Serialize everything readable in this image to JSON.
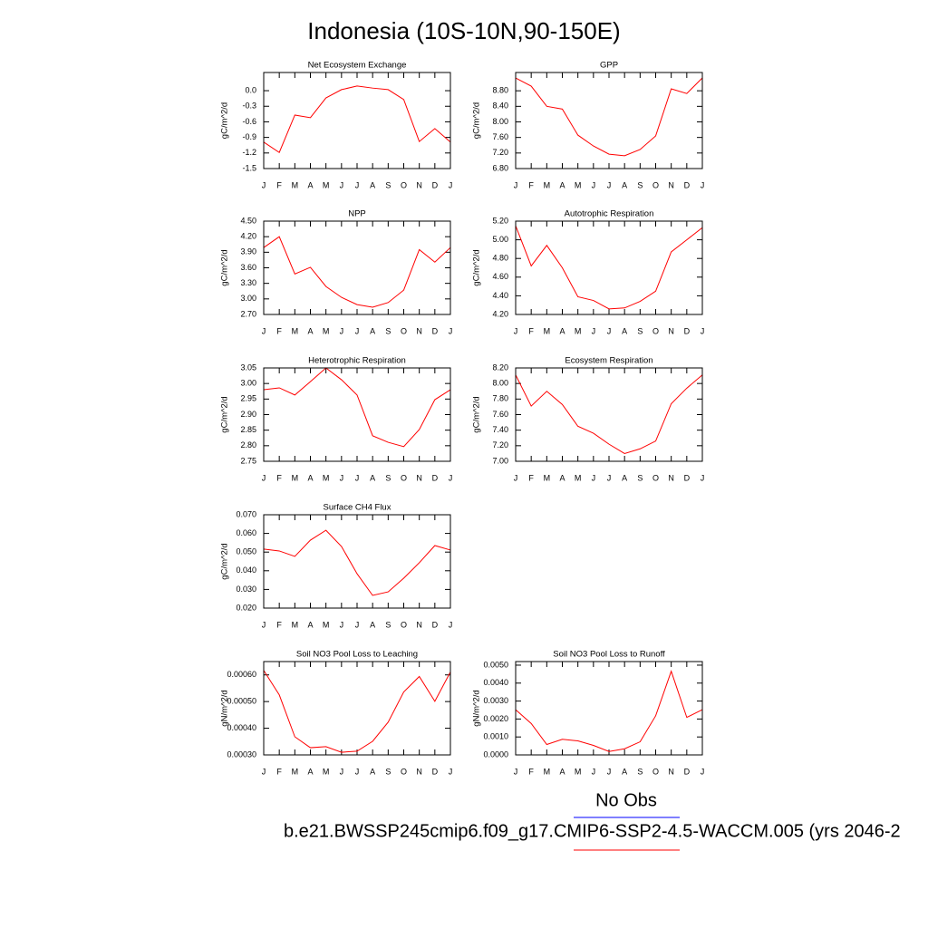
{
  "title": "Indonesia (10S-10N,90-150E)",
  "legend": {
    "obs_label": "No Obs",
    "obs_color": "#0000ff",
    "case_label": "b.e21.BWSSP245cmip6.f09_g17.CMIP6-SSP2-4.5-WACCM.005 (yrs 2046-2",
    "case_color": "#ff0000"
  },
  "chart_data": [
    {
      "type": "line",
      "title": "Net Ecosystem Exchange",
      "ylabel": "gC/m^2/d",
      "categories": [
        "J",
        "F",
        "M",
        "A",
        "M",
        "J",
        "J",
        "A",
        "S",
        "O",
        "N",
        "D",
        "J"
      ],
      "series": [
        {
          "color": "#ff0000",
          "values": [
            -0.99,
            -1.19,
            -0.47,
            -0.52,
            -0.14,
            0.02,
            0.09,
            0.05,
            0.02,
            -0.17,
            -0.98,
            -0.73,
            -0.99
          ]
        }
      ],
      "ylim": [
        -1.5,
        0.35
      ],
      "yticks": [
        {
          "value": 0,
          "label": "0.0"
        },
        -0.3,
        -0.6,
        -0.9,
        -1.2,
        -1.5
      ]
    },
    {
      "type": "line",
      "title": "GPP",
      "ylabel": "gC/m^2/d",
      "categories": [
        "J",
        "F",
        "M",
        "A",
        "M",
        "J",
        "J",
        "A",
        "S",
        "O",
        "N",
        "D",
        "J"
      ],
      "series": [
        {
          "color": "#ff0000",
          "values": [
            9.13,
            8.92,
            8.4,
            8.33,
            7.66,
            7.38,
            7.17,
            7.13,
            7.29,
            7.64,
            8.85,
            8.73,
            9.13
          ]
        }
      ],
      "ylim": [
        6.8,
        9.27
      ],
      "yticks": [
        {
          "value": 8.8,
          "label": "8.80"
        },
        {
          "value": 8.4,
          "label": "8.40"
        },
        {
          "value": 8.0,
          "label": "8.00"
        },
        {
          "value": 7.6,
          "label": "7.60"
        },
        {
          "value": 7.2,
          "label": "7.20"
        },
        {
          "value": 6.8,
          "label": "6.80"
        }
      ]
    },
    {
      "type": "line",
      "title": "NPP",
      "ylabel": "gC/m^2/d",
      "categories": [
        "J",
        "F",
        "M",
        "A",
        "M",
        "J",
        "J",
        "A",
        "S",
        "O",
        "N",
        "D",
        "J"
      ],
      "series": [
        {
          "color": "#ff0000",
          "values": [
            3.99,
            4.2,
            3.48,
            3.61,
            3.24,
            3.03,
            2.89,
            2.84,
            2.93,
            3.17,
            3.95,
            3.71,
            3.99
          ]
        }
      ],
      "ylim": [
        2.7,
        4.5
      ],
      "yticks": [
        {
          "value": 4.5,
          "label": "4.50"
        },
        {
          "value": 4.2,
          "label": "4.20"
        },
        {
          "value": 3.9,
          "label": "3.90"
        },
        {
          "value": 3.6,
          "label": "3.60"
        },
        {
          "value": 3.3,
          "label": "3.30"
        },
        {
          "value": 3.0,
          "label": "3.00"
        },
        {
          "value": 2.7,
          "label": "2.70"
        }
      ]
    },
    {
      "type": "line",
      "title": "Autotrophic Respiration",
      "ylabel": "gC/m^2/d",
      "categories": [
        "J",
        "F",
        "M",
        "A",
        "M",
        "J",
        "J",
        "A",
        "S",
        "O",
        "N",
        "D",
        "J"
      ],
      "series": [
        {
          "color": "#ff0000",
          "values": [
            5.15,
            4.72,
            4.94,
            4.7,
            4.39,
            4.35,
            4.26,
            4.27,
            4.34,
            4.45,
            4.87,
            5.0,
            5.13
          ]
        }
      ],
      "ylim": [
        4.2,
        5.2
      ],
      "yticks": [
        {
          "value": 5.2,
          "label": "5.20"
        },
        {
          "value": 5.0,
          "label": "5.00"
        },
        {
          "value": 4.8,
          "label": "4.80"
        },
        {
          "value": 4.6,
          "label": "4.60"
        },
        {
          "value": 4.4,
          "label": "4.40"
        },
        {
          "value": 4.2,
          "label": "4.20"
        }
      ]
    },
    {
      "type": "line",
      "title": "Heterotrophic Respiration",
      "ylabel": "gC/m^2/d",
      "categories": [
        "J",
        "F",
        "M",
        "A",
        "M",
        "J",
        "J",
        "A",
        "S",
        "O",
        "N",
        "D",
        "J"
      ],
      "series": [
        {
          "color": "#ff0000",
          "values": [
            2.98,
            2.986,
            2.963,
            3.006,
            3.05,
            3.012,
            2.963,
            2.832,
            2.811,
            2.797,
            2.852,
            2.948,
            2.98
          ]
        }
      ],
      "ylim": [
        2.75,
        3.05
      ],
      "yticks": [
        3.05,
        {
          "value": 3.0,
          "label": "3.00"
        },
        2.95,
        {
          "value": 2.9,
          "label": "2.90"
        },
        2.85,
        {
          "value": 2.8,
          "label": "2.80"
        },
        2.75
      ]
    },
    {
      "type": "line",
      "title": "Ecosystem Respiration",
      "ylabel": "gC/m^2/d",
      "categories": [
        "J",
        "F",
        "M",
        "A",
        "M",
        "J",
        "J",
        "A",
        "S",
        "O",
        "N",
        "D",
        "J"
      ],
      "series": [
        {
          "color": "#ff0000",
          "values": [
            8.11,
            7.71,
            7.9,
            7.73,
            7.45,
            7.36,
            7.22,
            7.1,
            7.16,
            7.26,
            7.74,
            7.94,
            8.11
          ]
        }
      ],
      "ylim": [
        7.0,
        8.2
      ],
      "yticks": [
        {
          "value": 8.2,
          "label": "8.20"
        },
        {
          "value": 8.0,
          "label": "8.00"
        },
        {
          "value": 7.8,
          "label": "7.80"
        },
        {
          "value": 7.6,
          "label": "7.60"
        },
        {
          "value": 7.4,
          "label": "7.40"
        },
        {
          "value": 7.2,
          "label": "7.20"
        },
        {
          "value": 7.0,
          "label": "7.00"
        }
      ]
    },
    {
      "type": "line",
      "title": "Surface CH4 Flux",
      "ylabel": "gC/m^2/d",
      "categories": [
        "J",
        "F",
        "M",
        "A",
        "M",
        "J",
        "J",
        "A",
        "S",
        "O",
        "N",
        "D",
        "J"
      ],
      "series": [
        {
          "color": "#ff0000",
          "values": [
            0.0516,
            0.0506,
            0.0477,
            0.0564,
            0.0617,
            0.053,
            0.0384,
            0.0268,
            0.0287,
            0.036,
            0.0443,
            0.0535,
            0.0511
          ]
        }
      ],
      "ylim": [
        0.02,
        0.07
      ],
      "yticks": [
        {
          "value": 0.07,
          "label": "0.070"
        },
        {
          "value": 0.06,
          "label": "0.060"
        },
        {
          "value": 0.05,
          "label": "0.050"
        },
        {
          "value": 0.04,
          "label": "0.040"
        },
        {
          "value": 0.03,
          "label": "0.030"
        },
        {
          "value": 0.02,
          "label": "0.020"
        }
      ]
    },
    {
      "type": "line",
      "title": "Soil NO3 Pool Loss to Leaching",
      "ylabel": "gN/m^2/d",
      "categories": [
        "J",
        "F",
        "M",
        "A",
        "M",
        "J",
        "J",
        "A",
        "S",
        "O",
        "N",
        "D",
        "J"
      ],
      "series": [
        {
          "color": "#ff0000",
          "values": [
            0.000617,
            0.000525,
            0.000368,
            0.000327,
            0.000331,
            0.00031,
            0.000314,
            0.000351,
            0.000423,
            0.000536,
            0.000594,
            0.000501,
            0.000611
          ]
        }
      ],
      "ylim": [
        0.0003,
        0.00065
      ],
      "yticks": [
        {
          "value": 0.0006,
          "label": "0.00060"
        },
        {
          "value": 0.0005,
          "label": "0.00050"
        },
        {
          "value": 0.0004,
          "label": "0.00040"
        },
        {
          "value": 0.0003,
          "label": "0.00030"
        }
      ]
    },
    {
      "type": "line",
      "title": "Soil NO3 Pool Loss to Runoff",
      "ylabel": "gN/m^2/d",
      "categories": [
        "J",
        "F",
        "M",
        "A",
        "M",
        "J",
        "J",
        "A",
        "S",
        "O",
        "N",
        "D",
        "J"
      ],
      "series": [
        {
          "color": "#ff0000",
          "values": [
            0.00252,
            0.00175,
            0.00058,
            0.00087,
            0.00078,
            0.00053,
            0.00019,
            0.00034,
            0.00073,
            0.00218,
            0.00466,
            0.00209,
            0.00252
          ]
        }
      ],
      "ylim": [
        0,
        0.0052
      ],
      "yticks": [
        {
          "value": 0.005,
          "label": "0.0050"
        },
        {
          "value": 0.004,
          "label": "0.0040"
        },
        {
          "value": 0.003,
          "label": "0.0030"
        },
        {
          "value": 0.002,
          "label": "0.0020"
        },
        {
          "value": 0.001,
          "label": "0.0010"
        },
        {
          "value": 0,
          "label": "0.0000"
        }
      ]
    }
  ]
}
